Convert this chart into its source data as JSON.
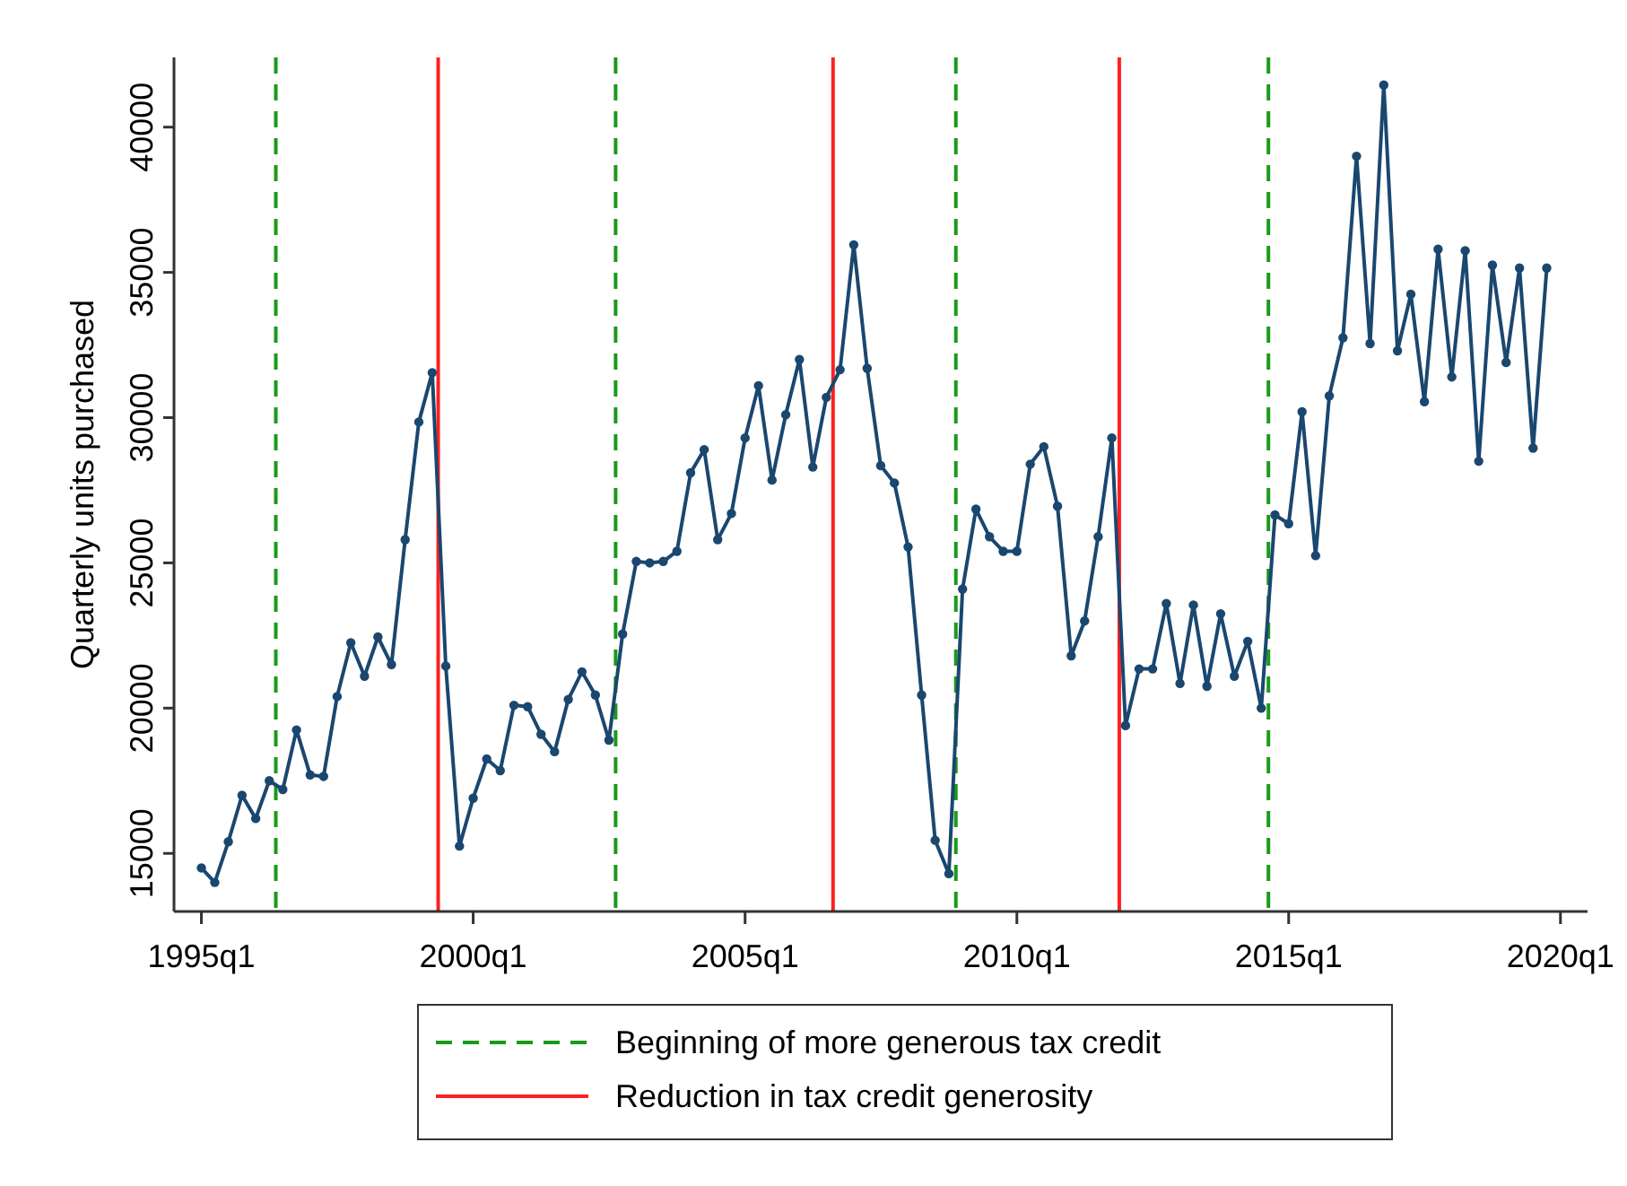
{
  "chart_data": {
    "type": "line",
    "ylabel": "Quarterly units purchased",
    "x": [
      "1995-01",
      "1995-04",
      "1995-07",
      "1995-10",
      "1996-01",
      "1996-04",
      "1996-07",
      "1996-10",
      "1997-01",
      "1997-04",
      "1997-07",
      "1997-10",
      "1998-01",
      "1998-04",
      "1998-07",
      "1998-10",
      "1999-01",
      "1999-04",
      "1999-07",
      "1999-10",
      "2000-01",
      "2000-04",
      "2000-07",
      "2000-10",
      "2001-01",
      "2001-04",
      "2001-07",
      "2001-10",
      "2002-01",
      "2002-04",
      "2002-07",
      "2002-10",
      "2003-01",
      "2003-04",
      "2003-07",
      "2003-10",
      "2004-01",
      "2004-04",
      "2004-07",
      "2004-10",
      "2005-01",
      "2005-04",
      "2005-07",
      "2005-10",
      "2006-01",
      "2006-04",
      "2006-07",
      "2006-10",
      "2007-01",
      "2007-04",
      "2007-07",
      "2007-10",
      "2008-01",
      "2008-04",
      "2008-07",
      "2008-10",
      "2009-01",
      "2009-04",
      "2009-07",
      "2009-10",
      "2010-01",
      "2010-04",
      "2010-07",
      "2010-10",
      "2011-01",
      "2011-04",
      "2011-07",
      "2011-10",
      "2012-01",
      "2012-04",
      "2012-07",
      "2012-10",
      "2013-01",
      "2013-04",
      "2013-07",
      "2013-10",
      "2014-01",
      "2014-04",
      "2014-07",
      "2014-10",
      "2015-01",
      "2015-04",
      "2015-07",
      "2015-10",
      "2016-01",
      "2016-04",
      "2016-07",
      "2016-10",
      "2017-01",
      "2017-04",
      "2017-07",
      "2017-10",
      "2018-01",
      "2018-04",
      "2018-07",
      "2018-10",
      "2019-01",
      "2019-04",
      "2019-07",
      "2019-10"
    ],
    "series": [
      {
        "color": "#1a476f",
        "values": [
          14500,
          14000,
          15400,
          17000,
          16200,
          17500,
          17200,
          19250,
          17700,
          17650,
          20400,
          22250,
          21100,
          22450,
          21500,
          25800,
          29850,
          31550,
          21450,
          15250,
          16900,
          18250,
          17850,
          20100,
          20050,
          19100,
          18500,
          20300,
          21250,
          20450,
          18900,
          22550,
          25050,
          25000,
          25050,
          25400,
          28100,
          28900,
          25800,
          26700,
          29300,
          31100,
          27850,
          30100,
          32000,
          28300,
          30700,
          31650,
          35950,
          31700,
          28350,
          27750,
          25550,
          20450,
          15450,
          14300,
          24100,
          26850,
          25900,
          25400,
          25400,
          28400,
          29000,
          26950,
          21800,
          23000,
          25900,
          29300,
          19400,
          21350,
          21350,
          23600,
          20850,
          23550,
          20750,
          23250,
          21100,
          22300,
          20000,
          26650,
          26350,
          30200,
          25250,
          30750,
          32750,
          39000,
          32550,
          41450,
          32300,
          34250,
          30550,
          35800,
          31400,
          35750,
          28500,
          35250,
          31900,
          35150,
          28950,
          35150
        ]
      }
    ],
    "xlim": [
      "1994-07",
      "2020-07"
    ],
    "xticks": [
      {
        "value": "1995-01",
        "label": "1995q1"
      },
      {
        "value": "2000-01",
        "label": "2000q1"
      },
      {
        "value": "2005-01",
        "label": "2005q1"
      },
      {
        "value": "2010-01",
        "label": "2010q1"
      },
      {
        "value": "2015-01",
        "label": "2015q1"
      },
      {
        "value": "2020-01",
        "label": "2020q1"
      }
    ],
    "ylim": [
      13000,
      42400
    ],
    "yticks": [
      15000,
      20000,
      25000,
      30000,
      35000,
      40000
    ],
    "marker": "circle",
    "grid": false,
    "legend": "bottom",
    "ref_lines": [
      {
        "axis": "x",
        "value": "1996-05-15",
        "label": "Beginning of more generous tax credit",
        "color": "#1a9a1a",
        "line_style": "dashed"
      },
      {
        "axis": "x",
        "value": "1999-05-11",
        "label": "Reduction in tax credit generosity",
        "color": "#ff2020",
        "line_style": "solid"
      },
      {
        "axis": "x",
        "value": "2002-08-15",
        "color": "#1a9a1a",
        "line_style": "dashed"
      },
      {
        "axis": "x",
        "value": "2006-08-15",
        "color": "#ff2020",
        "line_style": "solid"
      },
      {
        "axis": "x",
        "value": "2008-11-17",
        "color": "#1a9a1a",
        "line_style": "dashed"
      },
      {
        "axis": "x",
        "value": "2011-11-20",
        "color": "#ff2020",
        "line_style": "solid"
      },
      {
        "axis": "x",
        "value": "2014-08-18",
        "color": "#1a9a1a",
        "line_style": "dashed"
      }
    ]
  }
}
